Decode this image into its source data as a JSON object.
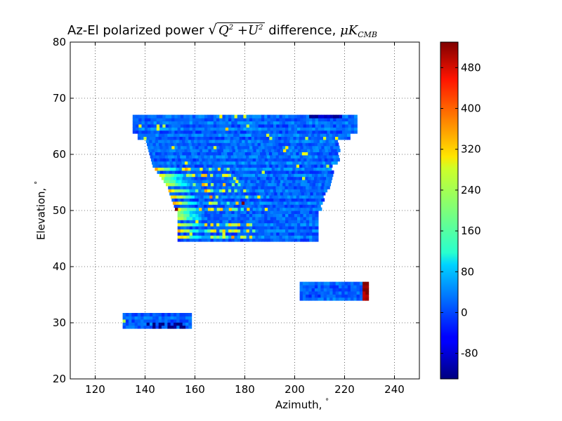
{
  "chart_data": {
    "type": "heatmap",
    "title_prefix": "Az-El polarized power",
    "title_expr_a": "Q",
    "title_expr_b": "+U",
    "title_exp": "2",
    "title_suffix": "difference,",
    "title_unit": "μK",
    "title_unit_sub": "CMB",
    "xlabel_text": "Azimuth,",
    "ylabel_text": "Elevation,",
    "degree_symbol": "°",
    "xlim": [
      110,
      250
    ],
    "ylim": [
      20,
      80
    ],
    "xticks": [
      "120",
      "140",
      "160",
      "180",
      "200",
      "220",
      "240"
    ],
    "yticks": [
      "20",
      "30",
      "40",
      "50",
      "60",
      "70",
      "80"
    ],
    "grid": true,
    "colormap": "jet",
    "colorbar": {
      "range": [
        -130,
        530
      ],
      "ticks": [
        "-80",
        "0",
        "80",
        "160",
        "240",
        "320",
        "400",
        "480"
      ]
    },
    "regions": [
      {
        "name": "main-field",
        "elevation_range": [
          44.5,
          67
        ],
        "azimuth_range": [
          135,
          224
        ],
        "typical_value": 20
      },
      {
        "name": "patch-right",
        "elevation_range": [
          34,
          36.8
        ],
        "azimuth_range": [
          202,
          229
        ],
        "typical_value": 10
      },
      {
        "name": "patch-left",
        "elevation_range": [
          29,
          31.6
        ],
        "azimuth_range": [
          131,
          158
        ],
        "typical_value": 15
      }
    ]
  }
}
